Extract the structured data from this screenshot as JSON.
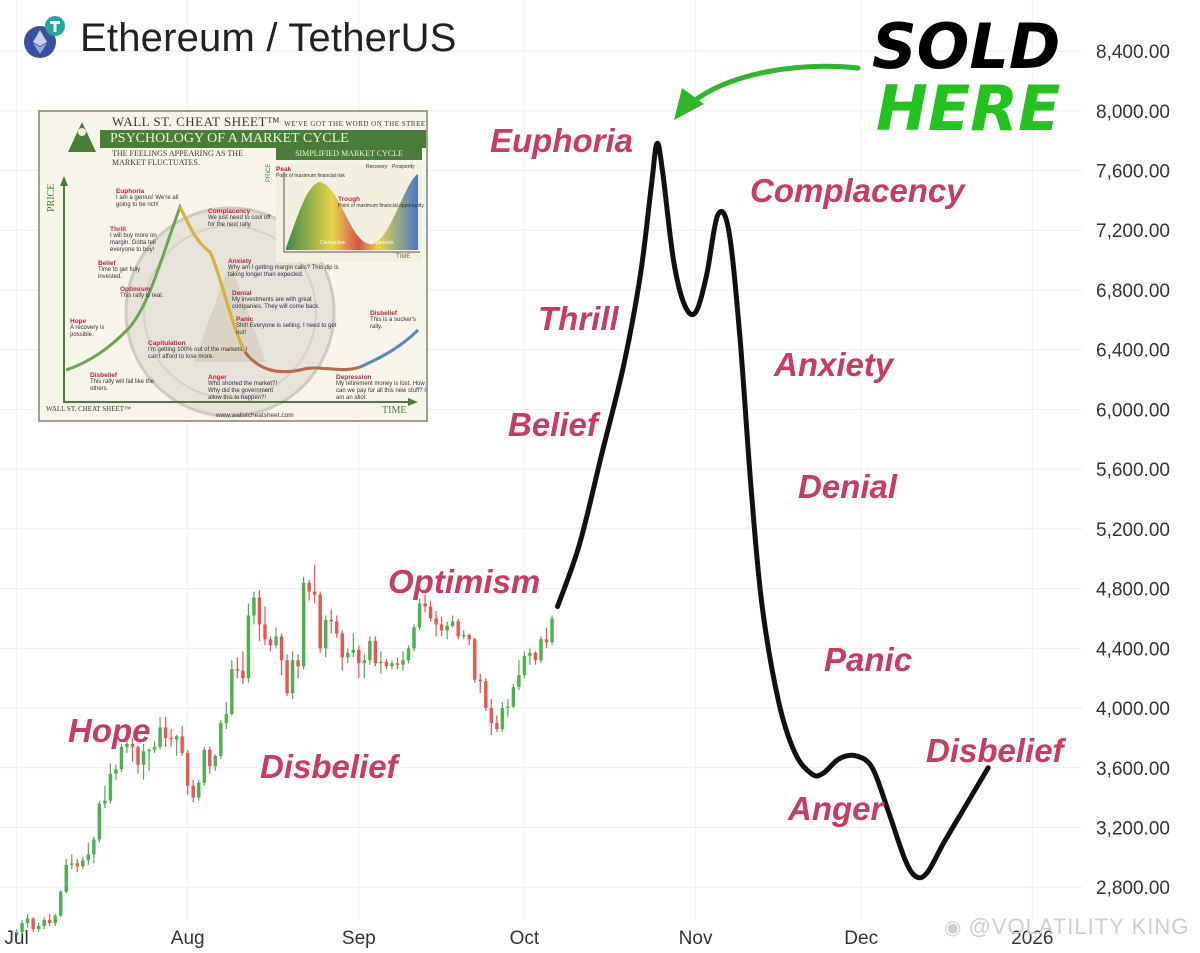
{
  "header": {
    "title": "Ethereum / TetherUS",
    "logo_icon": "tether-eth-icon"
  },
  "inset": {
    "title": "WALL ST. CHEAT SHEET™",
    "tagline": "WE'VE GOT THE WORD ON THE STREET",
    "heading": "PSYCHOLOGY OF A MARKET CYCLE",
    "subtitle": "THE FEELINGS APPEARING AS THE MARKET FLUCTUATES.",
    "simplified_label": "SIMPLIFIED MARKET CYCLE",
    "x_axis": "TIME",
    "y_axis": "PRICE",
    "footer_brand": "WALL ST. CHEAT SHEET™",
    "footer_url": "www.wallstcheatsheet.com",
    "stages": [
      {
        "name": "Euphoria",
        "text": "I am a genius! We're all going to be rich!"
      },
      {
        "name": "Complacency",
        "text": "We just need to cool off for the next rally."
      },
      {
        "name": "Thrill",
        "text": "I will buy more on margin. Gotta tell everyone to buy!"
      },
      {
        "name": "Anxiety",
        "text": "Why am I getting margin calls? This dip is taking longer than expected."
      },
      {
        "name": "Belief",
        "text": "Time to get fully invested."
      },
      {
        "name": "Denial",
        "text": "My investments are with great companies. They will come back."
      },
      {
        "name": "Optimism",
        "text": "This rally is real."
      },
      {
        "name": "Panic",
        "text": "Shit! Everyone is selling. I need to get out!"
      },
      {
        "name": "Hope",
        "text": "A recovery is possible."
      },
      {
        "name": "Capitulation",
        "text": "I'm getting 100% out of the markets. I can't afford to lose more."
      },
      {
        "name": "Disbelief",
        "text": "This is a sucker's rally."
      },
      {
        "name": "Disbelief",
        "text": "This rally will fail like the others."
      },
      {
        "name": "Anger",
        "text": "Who shorted the market?! Why did the government allow this to happen?!"
      },
      {
        "name": "Depression",
        "text": "My retirement money is lost. How can we pay for all this new stuff? I am an idiot."
      }
    ],
    "mini": {
      "peak": "Peak",
      "peak_note": "Point of maximum financial risk",
      "trough": "Trough",
      "trough_note": "Point of maximum financial opportunity",
      "recovery": "Recovery",
      "prosperity": "Prosperity",
      "contraction": "Contraction",
      "expansion": "Expansion",
      "price": "PRICE",
      "time": "TIME"
    }
  },
  "annotation": {
    "line1": "SOLD",
    "line2": "HERE",
    "arrow_icon": "green-arrow-icon"
  },
  "phases": [
    {
      "label": "Euphoria"
    },
    {
      "label": "Complacency"
    },
    {
      "label": "Thrill"
    },
    {
      "label": "Anxiety"
    },
    {
      "label": "Belief"
    },
    {
      "label": "Denial"
    },
    {
      "label": "Optimism"
    },
    {
      "label": "Panic"
    },
    {
      "label": "Hope"
    },
    {
      "label": "Disbelief"
    },
    {
      "label": "Disbelief"
    },
    {
      "label": "Anger"
    }
  ],
  "watermark": {
    "text": "@VOLATILITY KING",
    "icon": "weibo-like-icon"
  },
  "chart_data": {
    "type": "line",
    "title": "Ethereum / TetherUS",
    "y_ticks": [
      {
        "value": 2800,
        "label": "2,800.00"
      },
      {
        "value": 3200,
        "label": "3,200.00"
      },
      {
        "value": 3600,
        "label": "3,600.00"
      },
      {
        "value": 4000,
        "label": "4,000.00"
      },
      {
        "value": 4400,
        "label": "4,400.00"
      },
      {
        "value": 4800,
        "label": "4,800.00"
      },
      {
        "value": 5200,
        "label": "5,200.00"
      },
      {
        "value": 5600,
        "label": "5,600.00"
      },
      {
        "value": 6000,
        "label": "6,000.00"
      },
      {
        "value": 6400,
        "label": "6,400.00"
      },
      {
        "value": 6800,
        "label": "6,800.00"
      },
      {
        "value": 7200,
        "label": "7,200.00"
      },
      {
        "value": 7600,
        "label": "7,600.00"
      },
      {
        "value": 8000,
        "label": "8,000.00"
      },
      {
        "value": 8400,
        "label": "8,400.00"
      }
    ],
    "x_ticks": [
      {
        "date": "2025-07-01",
        "label": "Jul"
      },
      {
        "date": "2025-08-01",
        "label": "Aug"
      },
      {
        "date": "2025-09-01",
        "label": "Sep"
      },
      {
        "date": "2025-10-01",
        "label": "Oct"
      },
      {
        "date": "2025-11-01",
        "label": "Nov"
      },
      {
        "date": "2025-12-01",
        "label": "Dec"
      },
      {
        "date": "2026-01-01",
        "label": "2026"
      }
    ],
    "ylim": [
      2500,
      8500
    ],
    "xlim": [
      "2025-06-28",
      "2026-01-10"
    ],
    "grid": true,
    "candles": [
      {
        "d": "2025-07-01",
        "o": 2480,
        "h": 2520,
        "l": 2440,
        "c": 2500
      },
      {
        "d": "2025-07-02",
        "o": 2500,
        "h": 2580,
        "l": 2470,
        "c": 2560
      },
      {
        "d": "2025-07-03",
        "o": 2560,
        "h": 2620,
        "l": 2530,
        "c": 2590
      },
      {
        "d": "2025-07-04",
        "o": 2590,
        "h": 2600,
        "l": 2500,
        "c": 2520
      },
      {
        "d": "2025-07-05",
        "o": 2520,
        "h": 2560,
        "l": 2500,
        "c": 2540
      },
      {
        "d": "2025-07-06",
        "o": 2540,
        "h": 2600,
        "l": 2520,
        "c": 2580
      },
      {
        "d": "2025-07-07",
        "o": 2580,
        "h": 2620,
        "l": 2540,
        "c": 2560
      },
      {
        "d": "2025-07-08",
        "o": 2560,
        "h": 2620,
        "l": 2540,
        "c": 2610
      },
      {
        "d": "2025-07-09",
        "o": 2610,
        "h": 2780,
        "l": 2600,
        "c": 2770
      },
      {
        "d": "2025-07-10",
        "o": 2770,
        "h": 2990,
        "l": 2760,
        "c": 2950
      },
      {
        "d": "2025-07-11",
        "o": 2950,
        "h": 3020,
        "l": 2920,
        "c": 2960
      },
      {
        "d": "2025-07-12",
        "o": 2960,
        "h": 2990,
        "l": 2900,
        "c": 2940
      },
      {
        "d": "2025-07-13",
        "o": 2940,
        "h": 3000,
        "l": 2920,
        "c": 2980
      },
      {
        "d": "2025-07-14",
        "o": 2980,
        "h": 3100,
        "l": 2950,
        "c": 3020
      },
      {
        "d": "2025-07-15",
        "o": 3020,
        "h": 3140,
        "l": 2960,
        "c": 3120
      },
      {
        "d": "2025-07-16",
        "o": 3120,
        "h": 3380,
        "l": 3100,
        "c": 3360
      },
      {
        "d": "2025-07-17",
        "o": 3360,
        "h": 3480,
        "l": 3330,
        "c": 3380
      },
      {
        "d": "2025-07-18",
        "o": 3380,
        "h": 3630,
        "l": 3360,
        "c": 3560
      },
      {
        "d": "2025-07-19",
        "o": 3560,
        "h": 3620,
        "l": 3520,
        "c": 3590
      },
      {
        "d": "2025-07-20",
        "o": 3590,
        "h": 3760,
        "l": 3570,
        "c": 3740
      },
      {
        "d": "2025-07-21",
        "o": 3740,
        "h": 3860,
        "l": 3700,
        "c": 3760
      },
      {
        "d": "2025-07-22",
        "o": 3760,
        "h": 3800,
        "l": 3640,
        "c": 3740
      },
      {
        "d": "2025-07-23",
        "o": 3740,
        "h": 3750,
        "l": 3560,
        "c": 3620
      },
      {
        "d": "2025-07-24",
        "o": 3620,
        "h": 3760,
        "l": 3520,
        "c": 3710
      },
      {
        "d": "2025-07-25",
        "o": 3710,
        "h": 3730,
        "l": 3580,
        "c": 3720
      },
      {
        "d": "2025-07-26",
        "o": 3720,
        "h": 3780,
        "l": 3700,
        "c": 3740
      },
      {
        "d": "2025-07-27",
        "o": 3740,
        "h": 3940,
        "l": 3720,
        "c": 3870
      },
      {
        "d": "2025-07-28",
        "o": 3870,
        "h": 3940,
        "l": 3740,
        "c": 3800
      },
      {
        "d": "2025-07-29",
        "o": 3800,
        "h": 3860,
        "l": 3740,
        "c": 3790
      },
      {
        "d": "2025-07-30",
        "o": 3790,
        "h": 3820,
        "l": 3680,
        "c": 3810
      },
      {
        "d": "2025-07-31",
        "o": 3810,
        "h": 3880,
        "l": 3680,
        "c": 3700
      },
      {
        "d": "2025-08-01",
        "o": 3700,
        "h": 3720,
        "l": 3420,
        "c": 3480
      },
      {
        "d": "2025-08-02",
        "o": 3480,
        "h": 3520,
        "l": 3370,
        "c": 3400
      },
      {
        "d": "2025-08-03",
        "o": 3400,
        "h": 3520,
        "l": 3380,
        "c": 3500
      },
      {
        "d": "2025-08-04",
        "o": 3500,
        "h": 3740,
        "l": 3480,
        "c": 3720
      },
      {
        "d": "2025-08-05",
        "o": 3720,
        "h": 3740,
        "l": 3560,
        "c": 3610
      },
      {
        "d": "2025-08-06",
        "o": 3610,
        "h": 3690,
        "l": 3580,
        "c": 3680
      },
      {
        "d": "2025-08-07",
        "o": 3680,
        "h": 3920,
        "l": 3660,
        "c": 3900
      },
      {
        "d": "2025-08-08",
        "o": 3900,
        "h": 4040,
        "l": 3860,
        "c": 3960
      },
      {
        "d": "2025-08-09",
        "o": 3960,
        "h": 4320,
        "l": 3950,
        "c": 4260
      },
      {
        "d": "2025-08-10",
        "o": 4260,
        "h": 4340,
        "l": 4200,
        "c": 4250
      },
      {
        "d": "2025-08-11",
        "o": 4250,
        "h": 4380,
        "l": 4160,
        "c": 4200
      },
      {
        "d": "2025-08-12",
        "o": 4200,
        "h": 4700,
        "l": 4170,
        "c": 4620
      },
      {
        "d": "2025-08-13",
        "o": 4620,
        "h": 4780,
        "l": 4560,
        "c": 4740
      },
      {
        "d": "2025-08-14",
        "o": 4740,
        "h": 4790,
        "l": 4450,
        "c": 4560
      },
      {
        "d": "2025-08-15",
        "o": 4560,
        "h": 4680,
        "l": 4420,
        "c": 4460
      },
      {
        "d": "2025-08-16",
        "o": 4460,
        "h": 4480,
        "l": 4380,
        "c": 4420
      },
      {
        "d": "2025-08-17",
        "o": 4420,
        "h": 4540,
        "l": 4400,
        "c": 4480
      },
      {
        "d": "2025-08-18",
        "o": 4480,
        "h": 4500,
        "l": 4220,
        "c": 4320
      },
      {
        "d": "2025-08-19",
        "o": 4320,
        "h": 4360,
        "l": 4080,
        "c": 4100
      },
      {
        "d": "2025-08-20",
        "o": 4100,
        "h": 4380,
        "l": 4060,
        "c": 4320
      },
      {
        "d": "2025-08-21",
        "o": 4320,
        "h": 4360,
        "l": 4200,
        "c": 4280
      },
      {
        "d": "2025-08-22",
        "o": 4280,
        "h": 4880,
        "l": 4260,
        "c": 4840
      },
      {
        "d": "2025-08-23",
        "o": 4840,
        "h": 4860,
        "l": 4720,
        "c": 4780
      },
      {
        "d": "2025-08-24",
        "o": 4780,
        "h": 4960,
        "l": 4700,
        "c": 4760
      },
      {
        "d": "2025-08-25",
        "o": 4760,
        "h": 4780,
        "l": 4370,
        "c": 4400
      },
      {
        "d": "2025-08-26",
        "o": 4400,
        "h": 4620,
        "l": 4340,
        "c": 4590
      },
      {
        "d": "2025-08-27",
        "o": 4590,
        "h": 4660,
        "l": 4500,
        "c": 4580
      },
      {
        "d": "2025-08-28",
        "o": 4580,
        "h": 4620,
        "l": 4470,
        "c": 4500
      },
      {
        "d": "2025-08-29",
        "o": 4500,
        "h": 4520,
        "l": 4250,
        "c": 4340
      },
      {
        "d": "2025-08-30",
        "o": 4340,
        "h": 4400,
        "l": 4300,
        "c": 4370
      },
      {
        "d": "2025-08-31",
        "o": 4370,
        "h": 4500,
        "l": 4340,
        "c": 4390
      },
      {
        "d": "2025-09-01",
        "o": 4390,
        "h": 4420,
        "l": 4200,
        "c": 4300
      },
      {
        "d": "2025-09-02",
        "o": 4300,
        "h": 4360,
        "l": 4200,
        "c": 4320
      },
      {
        "d": "2025-09-03",
        "o": 4320,
        "h": 4480,
        "l": 4290,
        "c": 4450
      },
      {
        "d": "2025-09-04",
        "o": 4450,
        "h": 4480,
        "l": 4280,
        "c": 4300
      },
      {
        "d": "2025-09-05",
        "o": 4300,
        "h": 4380,
        "l": 4230,
        "c": 4310
      },
      {
        "d": "2025-09-06",
        "o": 4310,
        "h": 4330,
        "l": 4260,
        "c": 4280
      },
      {
        "d": "2025-09-07",
        "o": 4280,
        "h": 4320,
        "l": 4260,
        "c": 4300
      },
      {
        "d": "2025-09-08",
        "o": 4300,
        "h": 4340,
        "l": 4260,
        "c": 4290
      },
      {
        "d": "2025-09-09",
        "o": 4290,
        "h": 4380,
        "l": 4250,
        "c": 4320
      },
      {
        "d": "2025-09-10",
        "o": 4320,
        "h": 4420,
        "l": 4300,
        "c": 4400
      },
      {
        "d": "2025-09-11",
        "o": 4400,
        "h": 4560,
        "l": 4380,
        "c": 4540
      },
      {
        "d": "2025-09-12",
        "o": 4540,
        "h": 4730,
        "l": 4520,
        "c": 4700
      },
      {
        "d": "2025-09-13",
        "o": 4700,
        "h": 4760,
        "l": 4640,
        "c": 4680
      },
      {
        "d": "2025-09-14",
        "o": 4680,
        "h": 4720,
        "l": 4580,
        "c": 4600
      },
      {
        "d": "2025-09-15",
        "o": 4600,
        "h": 4650,
        "l": 4480,
        "c": 4560
      },
      {
        "d": "2025-09-16",
        "o": 4560,
        "h": 4610,
        "l": 4480,
        "c": 4520
      },
      {
        "d": "2025-09-17",
        "o": 4520,
        "h": 4580,
        "l": 4460,
        "c": 4550
      },
      {
        "d": "2025-09-18",
        "o": 4550,
        "h": 4620,
        "l": 4540,
        "c": 4580
      },
      {
        "d": "2025-09-19",
        "o": 4580,
        "h": 4600,
        "l": 4460,
        "c": 4480
      },
      {
        "d": "2025-09-20",
        "o": 4480,
        "h": 4520,
        "l": 4460,
        "c": 4490
      },
      {
        "d": "2025-09-21",
        "o": 4490,
        "h": 4500,
        "l": 4420,
        "c": 4460
      },
      {
        "d": "2025-09-22",
        "o": 4460,
        "h": 4470,
        "l": 4170,
        "c": 4190
      },
      {
        "d": "2025-09-23",
        "o": 4190,
        "h": 4230,
        "l": 4100,
        "c": 4180
      },
      {
        "d": "2025-09-24",
        "o": 4180,
        "h": 4200,
        "l": 3980,
        "c": 4000
      },
      {
        "d": "2025-09-25",
        "o": 4000,
        "h": 4060,
        "l": 3820,
        "c": 3900
      },
      {
        "d": "2025-09-26",
        "o": 3900,
        "h": 3950,
        "l": 3840,
        "c": 3860
      },
      {
        "d": "2025-09-27",
        "o": 3860,
        "h": 4040,
        "l": 3840,
        "c": 4000
      },
      {
        "d": "2025-09-28",
        "o": 4000,
        "h": 4060,
        "l": 3940,
        "c": 4010
      },
      {
        "d": "2025-09-29",
        "o": 4010,
        "h": 4160,
        "l": 4000,
        "c": 4140
      },
      {
        "d": "2025-09-30",
        "o": 4140,
        "h": 4320,
        "l": 4120,
        "c": 4220
      },
      {
        "d": "2025-10-01",
        "o": 4220,
        "h": 4380,
        "l": 4200,
        "c": 4350
      },
      {
        "d": "2025-10-02",
        "o": 4350,
        "h": 4400,
        "l": 4290,
        "c": 4370
      },
      {
        "d": "2025-10-03",
        "o": 4370,
        "h": 4380,
        "l": 4290,
        "c": 4320
      },
      {
        "d": "2025-10-04",
        "o": 4320,
        "h": 4480,
        "l": 4300,
        "c": 4460
      },
      {
        "d": "2025-10-05",
        "o": 4460,
        "h": 4540,
        "l": 4400,
        "c": 4440
      },
      {
        "d": "2025-10-06",
        "o": 4440,
        "h": 4620,
        "l": 4420,
        "c": 4600
      }
    ],
    "projection": [
      {
        "d": "2025-10-07",
        "v": 4680
      },
      {
        "d": "2025-10-11",
        "v": 5100
      },
      {
        "d": "2025-10-15",
        "v": 5700
      },
      {
        "d": "2025-10-19",
        "v": 6300
      },
      {
        "d": "2025-10-22",
        "v": 6900
      },
      {
        "d": "2025-10-24",
        "v": 7500
      },
      {
        "d": "2025-10-25",
        "v": 7780
      },
      {
        "d": "2025-10-26",
        "v": 7600
      },
      {
        "d": "2025-10-28",
        "v": 7000
      },
      {
        "d": "2025-10-30",
        "v": 6700
      },
      {
        "d": "2025-11-01",
        "v": 6650
      },
      {
        "d": "2025-11-03",
        "v": 6900
      },
      {
        "d": "2025-11-05",
        "v": 7300
      },
      {
        "d": "2025-11-07",
        "v": 7200
      },
      {
        "d": "2025-11-09",
        "v": 6500
      },
      {
        "d": "2025-11-11",
        "v": 5500
      },
      {
        "d": "2025-11-13",
        "v": 4700
      },
      {
        "d": "2025-11-16",
        "v": 4050
      },
      {
        "d": "2025-11-19",
        "v": 3700
      },
      {
        "d": "2025-11-22",
        "v": 3560
      },
      {
        "d": "2025-11-24",
        "v": 3560
      },
      {
        "d": "2025-11-27",
        "v": 3660
      },
      {
        "d": "2025-11-30",
        "v": 3680
      },
      {
        "d": "2025-12-03",
        "v": 3600
      },
      {
        "d": "2025-12-06",
        "v": 3300
      },
      {
        "d": "2025-12-09",
        "v": 2980
      },
      {
        "d": "2025-12-11",
        "v": 2870
      },
      {
        "d": "2025-12-13",
        "v": 2900
      },
      {
        "d": "2025-12-16",
        "v": 3100
      },
      {
        "d": "2025-12-20",
        "v": 3350
      },
      {
        "d": "2025-12-24",
        "v": 3600
      }
    ],
    "series": [
      {
        "name": "",
        "values": "candles"
      },
      {
        "name": "",
        "values": "projection"
      }
    ]
  }
}
